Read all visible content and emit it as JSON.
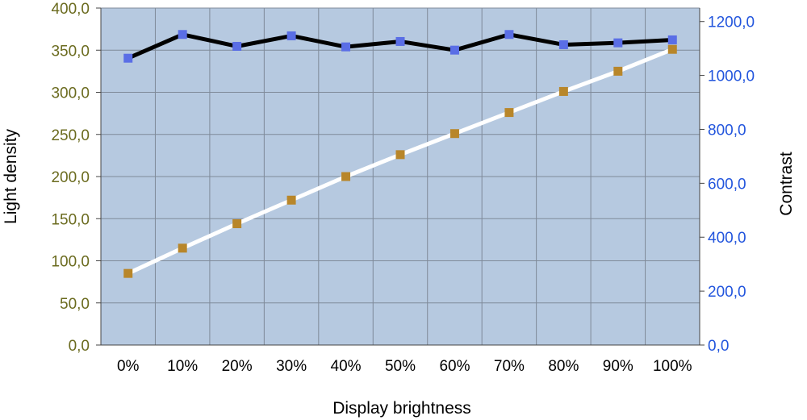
{
  "chart_data": {
    "type": "line",
    "xlabel": "Display brightness",
    "ylabel_left": "Light density",
    "ylabel_right": "Contrast",
    "categories": [
      "0%",
      "10%",
      "20%",
      "30%",
      "40%",
      "50%",
      "60%",
      "70%",
      "80%",
      "90%",
      "100%"
    ],
    "y_left_ticks": [
      "0,0",
      "50,0",
      "100,0",
      "150,0",
      "200,0",
      "250,0",
      "300,0",
      "350,0",
      "400,0"
    ],
    "y_right_ticks": [
      "0,0",
      "200,0",
      "400,0",
      "600,0",
      "800,0",
      "1000,0",
      "1200,0"
    ],
    "ylim_left": [
      0,
      400
    ],
    "ylim_right": [
      0,
      1250
    ],
    "grid": true,
    "series": [
      {
        "axis": "right",
        "values": [
          1064,
          1152,
          1108,
          1147,
          1106,
          1126,
          1094,
          1152,
          1114,
          1121,
          1132
        ],
        "line_color": "#000000",
        "marker_color": "#5a6ee6"
      },
      {
        "axis": "left",
        "values": [
          85,
          115,
          144,
          172,
          200,
          226,
          251,
          276,
          301,
          325,
          351
        ],
        "line_color": "#ffffff",
        "marker_color": "#b8862a"
      }
    ],
    "colors": {
      "plot_background": "#b6c9e0",
      "grid": "#7f8a99",
      "left_axis_text": "#6b6b1f",
      "right_axis_text": "#2255dd"
    }
  }
}
